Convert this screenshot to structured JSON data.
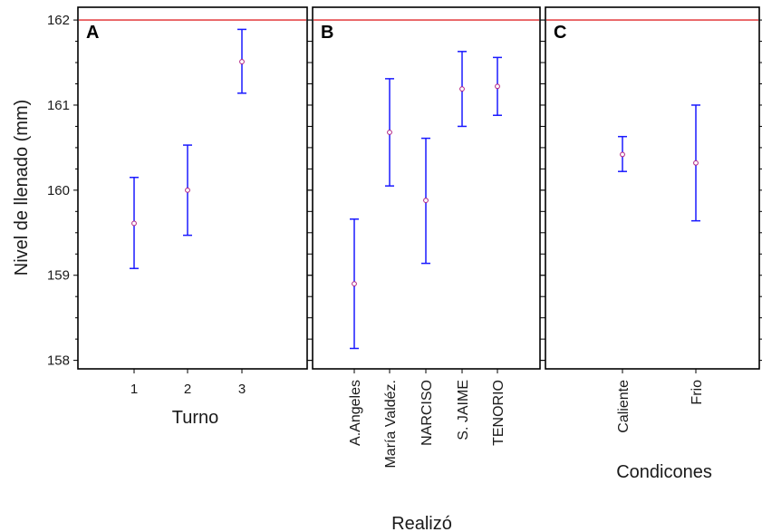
{
  "chart_data": {
    "type": "scatter",
    "ylabel": "Nivel de llenado (mm)",
    "ylim": [
      157.9,
      162.15
    ],
    "yticks": [
      "158",
      "159",
      "160",
      "161",
      "162"
    ],
    "reference_line": {
      "y": 162,
      "color": "#e0282a"
    },
    "colors": {
      "error_bar": "#1a1aff",
      "marker": "#b02080",
      "frame": "#000000"
    },
    "panels": [
      {
        "letter": "A",
        "xlabel": "Turno",
        "rotated_ticks": false,
        "categories": [
          "1",
          "2",
          "3"
        ],
        "mean": [
          159.61,
          160.0,
          161.51
        ],
        "lower": [
          159.08,
          159.47,
          161.14
        ],
        "upper": [
          160.15,
          160.53,
          161.89
        ]
      },
      {
        "letter": "B",
        "xlabel": "Realizó",
        "rotated_ticks": true,
        "categories": [
          "A.Angeles",
          "María Valdéz.",
          "NARCISO",
          "S. JAIME",
          "TENORIO"
        ],
        "mean": [
          158.9,
          160.68,
          159.88,
          161.19,
          161.22
        ],
        "lower": [
          158.14,
          160.05,
          159.14,
          160.75,
          160.88
        ],
        "upper": [
          159.66,
          161.31,
          160.61,
          161.63,
          161.56
        ]
      },
      {
        "letter": "C",
        "xlabel": "Condicones",
        "rotated_ticks": true,
        "categories": [
          "Caliente",
          "Frio"
        ],
        "mean": [
          160.42,
          160.32
        ],
        "lower": [
          160.22,
          159.64
        ],
        "upper": [
          160.63,
          161.0
        ]
      }
    ]
  }
}
